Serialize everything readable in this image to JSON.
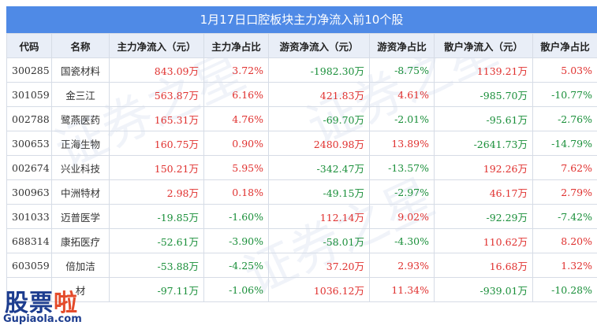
{
  "title": "1月17日口腔板块主力净流入前10个股",
  "headers": [
    "代码",
    "名称",
    "主力净流入（元）",
    "主力净占比",
    "游资净流入（元）",
    "游资净占比",
    "散户净流入（元）",
    "散户净占比"
  ],
  "rows": [
    {
      "code": "300285",
      "name": "国瓷材料",
      "main_in": "843.09万",
      "main_pct": "3.72%",
      "hot_in": "-1982.30万",
      "hot_pct": "-8.75%",
      "retail_in": "1139.21万",
      "retail_pct": "5.03%"
    },
    {
      "code": "301059",
      "name": "金三江",
      "main_in": "563.87万",
      "main_pct": "6.16%",
      "hot_in": "421.83万",
      "hot_pct": "4.61%",
      "retail_in": "-985.70万",
      "retail_pct": "-10.77%"
    },
    {
      "code": "002788",
      "name": "鹭燕医药",
      "main_in": "165.31万",
      "main_pct": "4.76%",
      "hot_in": "-69.70万",
      "hot_pct": "-2.01%",
      "retail_in": "-95.61万",
      "retail_pct": "-2.76%"
    },
    {
      "code": "300653",
      "name": "正海生物",
      "main_in": "160.75万",
      "main_pct": "0.90%",
      "hot_in": "2480.98万",
      "hot_pct": "13.89%",
      "retail_in": "-2641.73万",
      "retail_pct": "-14.79%"
    },
    {
      "code": "002674",
      "name": "兴业科技",
      "main_in": "150.21万",
      "main_pct": "5.95%",
      "hot_in": "-342.47万",
      "hot_pct": "-13.57%",
      "retail_in": "192.26万",
      "retail_pct": "7.62%"
    },
    {
      "code": "300963",
      "name": "中洲特材",
      "main_in": "2.98万",
      "main_pct": "0.18%",
      "hot_in": "-49.15万",
      "hot_pct": "-2.97%",
      "retail_in": "46.17万",
      "retail_pct": "2.79%"
    },
    {
      "code": "301033",
      "name": "迈普医学",
      "main_in": "-19.85万",
      "main_pct": "-1.60%",
      "hot_in": "112.14万",
      "hot_pct": "9.02%",
      "retail_in": "-92.29万",
      "retail_pct": "-7.42%"
    },
    {
      "code": "688314",
      "name": "康拓医疗",
      "main_in": "-52.61万",
      "main_pct": "-3.90%",
      "hot_in": "-58.01万",
      "hot_pct": "-4.30%",
      "retail_in": "110.62万",
      "retail_pct": "8.20%"
    },
    {
      "code": "603059",
      "name": "倍加洁",
      "main_in": "-53.88万",
      "main_pct": "-4.25%",
      "hot_in": "37.20万",
      "hot_pct": "2.93%",
      "retail_in": "16.68万",
      "retail_pct": "1.32%"
    },
    {
      "code": "",
      "name": "材",
      "main_in": "-97.11万",
      "main_pct": "-1.06%",
      "hot_in": "1036.12万",
      "hot_pct": "11.34%",
      "retail_in": "-939.01万",
      "retail_pct": "-10.28%"
    }
  ],
  "logo": {
    "text_a": "股票",
    "text_b": "啦",
    "url": "Gupiaola.com"
  },
  "colors": {
    "header_bar": "#4f8ae6",
    "positive": "#e0312f",
    "negative": "#1a8f3a"
  }
}
